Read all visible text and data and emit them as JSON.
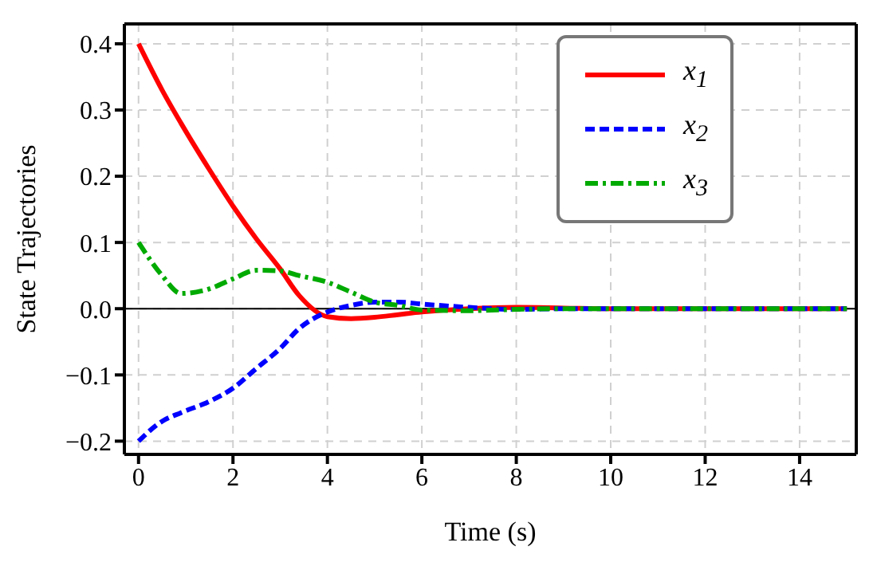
{
  "chart_data": {
    "type": "line",
    "xlabel": "Time (s)",
    "ylabel": "State Trajectories",
    "x": [
      0,
      0.5,
      0.9,
      1.5,
      2,
      2.5,
      3,
      3.4,
      4,
      4.5,
      5,
      5.5,
      6,
      7,
      8,
      9,
      10,
      12,
      15
    ],
    "series": [
      {
        "name": "x$_{1}$",
        "color": "#ff0000",
        "line_style": "solid",
        "values": [
          0.4,
          0.33,
          0.28,
          0.21,
          0.155,
          0.105,
          0.06,
          0.02,
          -0.012,
          -0.015,
          -0.013,
          -0.009,
          -0.005,
          0,
          0.002,
          0.001,
          0,
          0,
          0
        ]
      },
      {
        "name": "x$_{2}$",
        "color": "#0000ff",
        "line_style": "dashed",
        "values": [
          -0.2,
          -0.17,
          -0.157,
          -0.14,
          -0.12,
          -0.09,
          -0.06,
          -0.03,
          -0.005,
          0.005,
          0.01,
          0.01,
          0.007,
          0.002,
          -0.001,
          0,
          0,
          0,
          0
        ]
      },
      {
        "name": "x$_{3}$",
        "color": "#00aa00",
        "line_style": "dashdot",
        "values": [
          0.1,
          0.05,
          0.023,
          0.03,
          0.045,
          0.058,
          0.057,
          0.05,
          0.04,
          0.025,
          0.01,
          0.005,
          -0.002,
          -0.003,
          -0.001,
          0,
          0,
          0,
          0
        ]
      }
    ],
    "xlim": [
      -0.3,
      15.2
    ],
    "xticks": [
      0,
      2,
      4,
      6,
      8,
      10,
      12,
      14
    ],
    "ylim": [
      -0.22,
      0.43
    ],
    "yticks": [
      {
        "value": -0.2,
        "label": "−0.2"
      },
      {
        "value": -0.1,
        "label": "−0.1"
      },
      {
        "value": 0,
        "label": "0.0"
      },
      {
        "value": 0.1,
        "label": "0.1"
      },
      {
        "value": 0.2,
        "label": "0.2"
      },
      {
        "value": 0.3,
        "label": "0.3"
      },
      {
        "value": 0.4,
        "label": "0.4"
      }
    ],
    "ref_lines": [
      {
        "axis": "y",
        "value": 0,
        "color": "#000000",
        "line_style": "solid"
      }
    ],
    "grid": true,
    "legend": "top right"
  }
}
